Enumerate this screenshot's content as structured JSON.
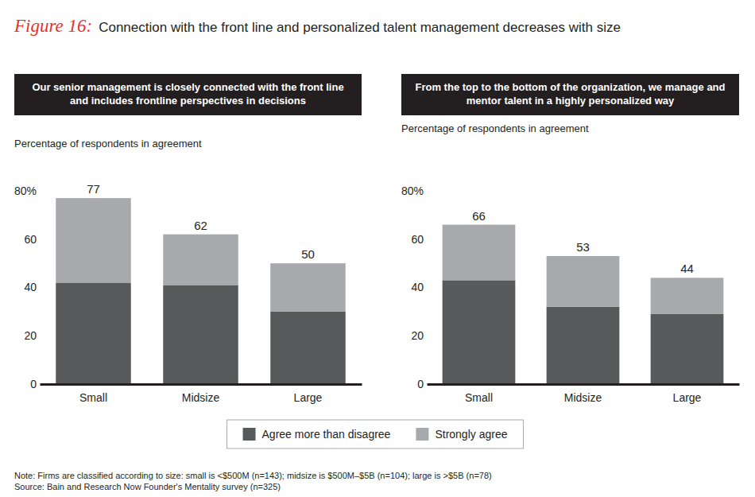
{
  "figure_label": "Figure 16:",
  "title": "Connection with the front line and personalized talent management decreases with size",
  "chart_data": [
    {
      "type": "bar",
      "stacked": true,
      "legend": "bottom",
      "title": "Our senior management is closely connected with the front line and includes frontline perspectives in decisions",
      "y_label": "Percentage of respondents in agreement",
      "categories": [
        "Small",
        "Midsize",
        "Large"
      ],
      "series": [
        {
          "name": "Agree more than disagree",
          "color": "#58595b",
          "values": [
            42,
            41,
            30
          ]
        },
        {
          "name": "Strongly agree",
          "color": "#a7a9ac",
          "values": [
            35,
            21,
            20
          ]
        }
      ],
      "totals": [
        77,
        62,
        50
      ],
      "ylim": [
        0,
        80
      ],
      "yticks": [
        0,
        20,
        40,
        60,
        {
          "value": 80,
          "label": "80%"
        }
      ]
    },
    {
      "type": "bar",
      "stacked": true,
      "title": "From the top to the bottom of the organization, we manage and mentor talent in a highly personalized way",
      "y_label": "Percentage of respondents in agreement",
      "categories": [
        "Small",
        "Midsize",
        "Large"
      ],
      "series": [
        {
          "color": "#58595b",
          "values": [
            43,
            32,
            29
          ]
        },
        {
          "color": "#a7a9ac",
          "values": [
            23,
            21,
            15
          ]
        }
      ],
      "totals": [
        66,
        53,
        44
      ],
      "ylim": [
        0,
        80
      ],
      "yticks": [
        0,
        20,
        40,
        60,
        {
          "value": 80,
          "label": "80%"
        }
      ]
    }
  ],
  "note": "Note: Firms are classified according to size: small is <$500M (n=143); midsize is $500M–$5B (n=104); large is >$5B (n=78)",
  "source": "Source: Bain and Research Now Founder's Mentality survey (n=325)"
}
